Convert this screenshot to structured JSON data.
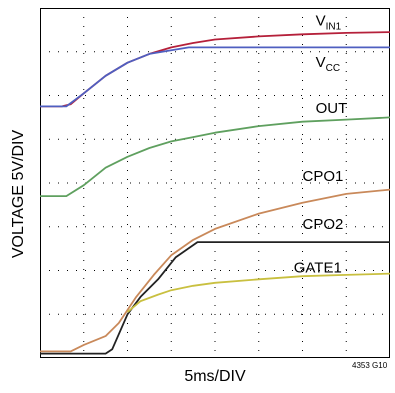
{
  "chart_data": {
    "type": "line",
    "title": "",
    "xlabel": "5ms/DIV",
    "ylabel": "VOLTAGE 5V/DIV",
    "figure_id": "4353 G10",
    "x_divisions": 8,
    "y_divisions": 8,
    "grid": "dotted",
    "xlim": [
      0,
      8
    ],
    "ylim": [
      0,
      8
    ],
    "x_units": "divisions (5ms/DIV)",
    "y_units": "divisions (5V/DIV)",
    "series": [
      {
        "name": "VIN1",
        "label_main": "V",
        "label_sub": "IN1",
        "color": "#b5203a",
        "label_div": [
          6.3,
          7.6
        ],
        "points": [
          [
            0,
            5.75
          ],
          [
            0.5,
            5.75
          ],
          [
            0.7,
            5.8
          ],
          [
            1.0,
            6.05
          ],
          [
            1.5,
            6.45
          ],
          [
            2.0,
            6.75
          ],
          [
            2.5,
            6.95
          ],
          [
            3.0,
            7.1
          ],
          [
            3.5,
            7.2
          ],
          [
            4.0,
            7.28
          ],
          [
            5.0,
            7.35
          ],
          [
            6.0,
            7.4
          ],
          [
            7.0,
            7.43
          ],
          [
            8.0,
            7.45
          ]
        ]
      },
      {
        "name": "VCC",
        "label_main": "V",
        "label_sub": "CC",
        "color": "#4f5fc0",
        "label_div": [
          6.3,
          6.65
        ],
        "points": [
          [
            0,
            5.75
          ],
          [
            0.6,
            5.75
          ],
          [
            1.0,
            6.05
          ],
          [
            1.5,
            6.45
          ],
          [
            2.0,
            6.75
          ],
          [
            2.5,
            6.95
          ],
          [
            3.4,
            7.1
          ],
          [
            5.0,
            7.1
          ],
          [
            6.5,
            7.1
          ],
          [
            8.0,
            7.1
          ]
        ]
      },
      {
        "name": "OUT",
        "label_main": "OUT",
        "label_sub": "",
        "color": "#5fa05f",
        "label_div": [
          6.3,
          5.6
        ],
        "points": [
          [
            0,
            3.7
          ],
          [
            0.6,
            3.7
          ],
          [
            1.0,
            3.95
          ],
          [
            1.5,
            4.35
          ],
          [
            2.0,
            4.6
          ],
          [
            2.5,
            4.8
          ],
          [
            3.0,
            4.95
          ],
          [
            3.5,
            5.05
          ],
          [
            4.0,
            5.15
          ],
          [
            5.0,
            5.3
          ],
          [
            6.0,
            5.4
          ],
          [
            7.0,
            5.45
          ],
          [
            8.0,
            5.5
          ]
        ]
      },
      {
        "name": "CPO1",
        "label_main": "CPO1",
        "label_sub": "",
        "color": "#c9895a",
        "label_div": [
          6.0,
          4.05
        ],
        "points": [
          [
            0,
            0.15
          ],
          [
            0.7,
            0.15
          ],
          [
            1.0,
            0.3
          ],
          [
            1.5,
            0.5
          ],
          [
            1.8,
            0.8
          ],
          [
            2.2,
            1.4
          ],
          [
            2.6,
            1.9
          ],
          [
            3.0,
            2.35
          ],
          [
            3.5,
            2.7
          ],
          [
            4.0,
            2.95
          ],
          [
            5.0,
            3.3
          ],
          [
            6.0,
            3.55
          ],
          [
            7.0,
            3.75
          ],
          [
            8.0,
            3.85
          ]
        ]
      },
      {
        "name": "CPO2",
        "label_main": "CPO2",
        "label_sub": "",
        "color": "#222222",
        "label_div": [
          6.0,
          2.95
        ],
        "points": [
          [
            0,
            0.1
          ],
          [
            1.5,
            0.1
          ],
          [
            1.65,
            0.2
          ],
          [
            2.0,
            1.0
          ],
          [
            2.3,
            1.4
          ],
          [
            2.7,
            1.8
          ],
          [
            3.1,
            2.3
          ],
          [
            3.6,
            2.65
          ],
          [
            4.0,
            2.65
          ],
          [
            8.0,
            2.65
          ]
        ]
      },
      {
        "name": "GATE1",
        "label_main": "GATE1",
        "label_sub": "",
        "color": "#c9c040",
        "label_div": [
          5.8,
          1.95
        ],
        "points": [
          [
            2.0,
            1.05
          ],
          [
            2.3,
            1.3
          ],
          [
            2.7,
            1.45
          ],
          [
            3.0,
            1.55
          ],
          [
            3.5,
            1.65
          ],
          [
            4.0,
            1.72
          ],
          [
            5.0,
            1.8
          ],
          [
            6.0,
            1.87
          ],
          [
            7.0,
            1.9
          ],
          [
            8.0,
            1.93
          ]
        ]
      }
    ]
  }
}
